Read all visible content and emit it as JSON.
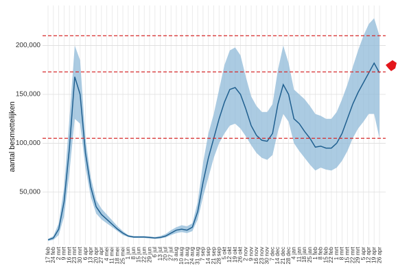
{
  "chart_data": {
    "type": "band-line",
    "y_label": "aantal besmettelijken",
    "categories": [
      "17 feb",
      "24 feb",
      "2 mrt",
      "9 mrt",
      "16 mrt",
      "23 mrt",
      "30 mrt",
      "6 apr",
      "13 apr",
      "20 apr",
      "27 apr",
      "4 mei",
      "11 mei",
      "18 mei",
      "25 mei",
      "1 jun",
      "8 jun",
      "15 jun",
      "22 jun",
      "29 jun",
      "6 jul",
      "13 jul",
      "20 jul",
      "27 jul",
      "3 aug",
      "10 aug",
      "17 aug",
      "24 aug",
      "31 aug",
      "7 sep",
      "14 sep",
      "21 sep",
      "28 sep",
      "5 okt",
      "12 okt",
      "19 okt",
      "26 okt",
      "2 nov",
      "9 nov",
      "16 nov",
      "23 nov",
      "30 nov",
      "7 dec",
      "14 dec",
      "21 dec",
      "28 dec",
      "4 jan",
      "11 jan",
      "18 jan",
      "25 jan",
      "1 feb",
      "8 feb",
      "15 feb",
      "22 feb",
      "1 mrt",
      "8 mrt",
      "15 mrt",
      "22 mrt",
      "29 mrt",
      "5 apr",
      "12 apr",
      "19 apr",
      "26 apr"
    ],
    "values": [
      1000,
      3000,
      12000,
      40000,
      95000,
      168000,
      150000,
      90000,
      55000,
      35000,
      27000,
      22000,
      17000,
      12000,
      8000,
      5000,
      4000,
      4000,
      4000,
      3500,
      3000,
      3500,
      5000,
      8000,
      11000,
      12000,
      11000,
      14000,
      30000,
      60000,
      85000,
      105000,
      125000,
      142000,
      155000,
      157000,
      150000,
      135000,
      118000,
      108000,
      103000,
      102000,
      110000,
      140000,
      160000,
      150000,
      125000,
      120000,
      112000,
      105000,
      96000,
      97000,
      95000,
      95000,
      100000,
      110000,
      125000,
      140000,
      152000,
      162000,
      172000,
      182000,
      172000
    ],
    "lower": [
      0,
      1000,
      6000,
      25000,
      70000,
      125000,
      120000,
      75000,
      45000,
      28000,
      22000,
      18000,
      14000,
      10000,
      6000,
      4000,
      3000,
      3000,
      3000,
      2500,
      2000,
      2500,
      3500,
      6000,
      8000,
      9000,
      8000,
      10000,
      22000,
      45000,
      65000,
      85000,
      100000,
      110000,
      118000,
      120000,
      115000,
      107000,
      98000,
      90000,
      85000,
      83000,
      88000,
      112000,
      130000,
      122000,
      100000,
      92000,
      85000,
      78000,
      72000,
      75000,
      73000,
      72000,
      75000,
      82000,
      92000,
      105000,
      115000,
      122000,
      130000,
      130000,
      105000
    ],
    "upper": [
      2000,
      5000,
      18000,
      55000,
      125000,
      200000,
      185000,
      105000,
      65000,
      42000,
      33000,
      27000,
      21000,
      15000,
      10000,
      6000,
      5000,
      5000,
      5000,
      4500,
      4000,
      5000,
      7000,
      11000,
      14000,
      16000,
      15000,
      18000,
      40000,
      80000,
      110000,
      130000,
      155000,
      180000,
      195000,
      198000,
      190000,
      168000,
      148000,
      138000,
      132000,
      132000,
      140000,
      175000,
      200000,
      182000,
      155000,
      150000,
      145000,
      138000,
      130000,
      128000,
      125000,
      125000,
      132000,
      145000,
      160000,
      178000,
      195000,
      210000,
      222000,
      228000,
      210000
    ],
    "line_color": "#1f5f8f",
    "band_color": "#8fbad8",
    "hlines": [
      210000,
      173000,
      105000
    ],
    "hline_color": "#d62728",
    "ylim": [
      -4000,
      241000
    ],
    "yticks": [
      {
        "value": 50000,
        "label": "50,000"
      },
      {
        "value": 100000,
        "label": "100,000"
      },
      {
        "value": 150000,
        "label": "150,000"
      },
      {
        "value": 200000,
        "label": "200,000"
      }
    ],
    "grid": true
  }
}
